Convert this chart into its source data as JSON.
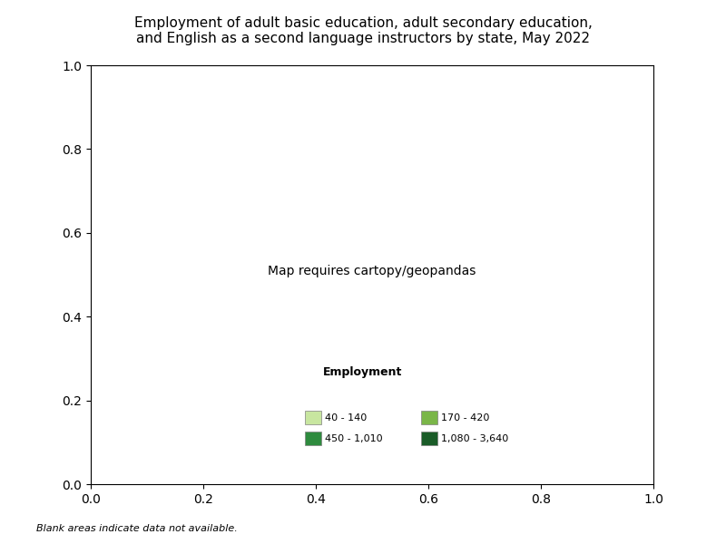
{
  "title": "Employment of adult basic education, adult secondary education,\nand English as a second language instructors by state, May 2022",
  "legend_title": "Employment",
  "legend_items": [
    {
      "label": "40 - 140",
      "color": "#c8e6a0"
    },
    {
      "label": "170 - 420",
      "color": "#7ab648"
    },
    {
      "label": "450 - 1,010",
      "color": "#2e8b3e"
    },
    {
      "label": "1,080 - 3,640",
      "color": "#1a5c28"
    }
  ],
  "footnote": "Blank areas indicate data not available.",
  "state_colors": {
    "WA": "#2e8b3e",
    "OR": "#2e8b3e",
    "CA": "#1a5c28",
    "NV": "#ffffff",
    "ID": "#7ab648",
    "MT": "#7ab648",
    "WY": "#c8e6a0",
    "UT": "#7ab648",
    "AZ": "#7ab648",
    "CO": "#2e8b3e",
    "NM": "#c8e6a0",
    "ND": "#c8e6a0",
    "SD": "#c8e6a0",
    "NE": "#c8e6a0",
    "KS": "#c8e6a0",
    "OK": "#1a5c28",
    "TX": "#1a5c28",
    "MN": "#1a5c28",
    "IA": "#7ab648",
    "MO": "#7ab648",
    "AR": "#7ab648",
    "LA": "#c8e6a0",
    "WI": "#2e8b3e",
    "IL": "#2e8b3e",
    "MI": "#2e8b3e",
    "IN": "#2e8b3e",
    "OH": "#2e8b3e",
    "KY": "#7ab648",
    "TN": "#7ab648",
    "MS": "#7ab648",
    "AL": "#2e8b3e",
    "GA": "#2e8b3e",
    "FL": "#1a5c28",
    "SC": "#7ab648",
    "NC": "#2e8b3e",
    "VA": "#2e8b3e",
    "WV": "#c8e6a0",
    "PA": "#2e8b3e",
    "NY": "#1a5c28",
    "ME": "#c8e6a0",
    "VT": "#c8e6a0",
    "NH": "#c8e6a0",
    "MA": "#1a5c28",
    "RI": "#c8e6a0",
    "CT": "#2e8b3e",
    "NJ": "#2e8b3e",
    "DE": "#c8e6a0",
    "MD": "#2e8b3e",
    "DC": "#c8e6a0",
    "AK": "#ffffff",
    "HI": "#2e8b3e",
    "PR": "#c8e6a0"
  }
}
